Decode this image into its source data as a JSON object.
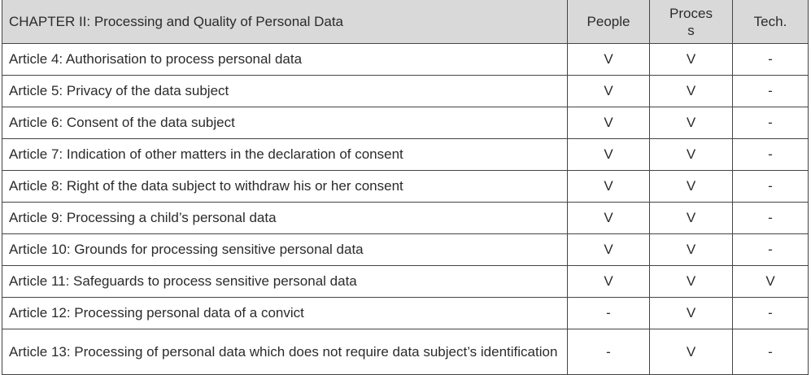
{
  "table": {
    "headers": {
      "chapter": "CHAPTER II: Processing and Quality of Personal Data",
      "people": "People",
      "process": "Process",
      "tech": "Tech."
    },
    "rows": [
      {
        "article": "Article 4: Authorisation to process personal data",
        "people": "V",
        "process": "V",
        "tech": "-"
      },
      {
        "article": "Article 5: Privacy of the data subject",
        "people": "V",
        "process": "V",
        "tech": "-"
      },
      {
        "article": "Article 6: Consent of the data subject",
        "people": "V",
        "process": "V",
        "tech": "-"
      },
      {
        "article": "Article 7: Indication of other matters in the declaration of consent",
        "people": "V",
        "process": "V",
        "tech": "-"
      },
      {
        "article": "Article 8: Right of the data subject to withdraw his or her consent",
        "people": "V",
        "process": "V",
        "tech": "-"
      },
      {
        "article": "Article 9: Processing a child’s personal data",
        "people": "V",
        "process": "V",
        "tech": "-"
      },
      {
        "article": "Article 10: Grounds for processing sensitive personal data",
        "people": "V",
        "process": "V",
        "tech": "-"
      },
      {
        "article": "Article 11: Safeguards to process sensitive personal data",
        "people": "V",
        "process": "V",
        "tech": "V"
      },
      {
        "article": "Article 12: Processing personal data of a convict",
        "people": "-",
        "process": "V",
        "tech": "-"
      },
      {
        "article": "Article 13: Processing of personal data which does not require data subject’s identification",
        "people": "-",
        "process": "V",
        "tech": "-"
      }
    ]
  }
}
